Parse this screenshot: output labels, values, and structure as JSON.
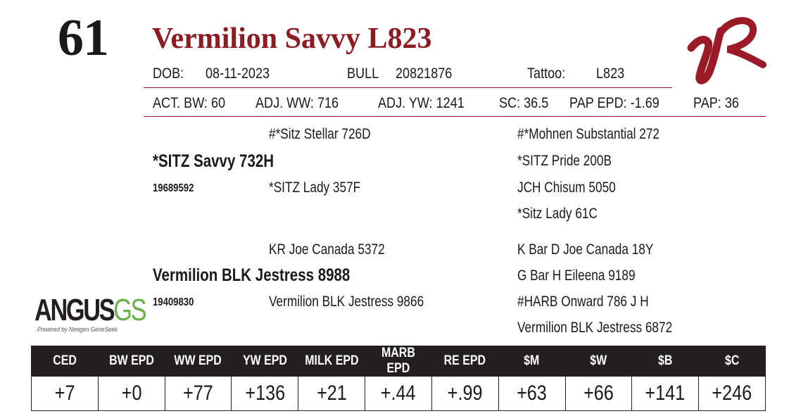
{
  "lot_number": "61",
  "animal_name": "Vermilion Savvy L823",
  "brand_logo": "VR",
  "header": {
    "dob_label": "DOB:",
    "dob": "08-11-2023",
    "sex": "BULL",
    "reg_no": "20821876",
    "tattoo_label": "Tattoo:",
    "tattoo": "L823"
  },
  "performance": {
    "act_bw": "ACT. BW: 60",
    "adj_ww": "ADJ. WW: 716",
    "adj_yw": "ADJ. YW: 1241",
    "sc": "SC: 36.5",
    "pap_epd": "PAP EPD: -1.69",
    "pap": "PAP: 36"
  },
  "pedigree": {
    "sire": "*SITZ Savvy 732H",
    "sire_reg": "19689592",
    "sire_sire": "#*Sitz Stellar 726D",
    "sire_dam": "*SITZ Lady 357F",
    "sire_sire_sire": "#*Mohnen Substantial 272",
    "sire_sire_dam": "*SITZ Pride 200B",
    "sire_dam_sire": "JCH Chisum 5050",
    "sire_dam_dam": "*Sitz Lady 61C",
    "dam": "Vermilion BLK Jestress 8988",
    "dam_reg": "19409830",
    "dam_sire": "KR Joe Canada 5372",
    "dam_dam": "Vermilion BLK Jestress 9866",
    "dam_sire_sire": "K Bar D Joe Canada 18Y",
    "dam_sire_dam": "G Bar H Eileena 9189",
    "dam_dam_sire": "#HARB Onward 786 J H",
    "dam_dam_dam": "Vermilion BLK Jestress 6872"
  },
  "angus_logo": {
    "word": "ANGUS",
    "suffix": "GS",
    "tagline": "Powered by Neogen GeneSeek"
  },
  "epd_table": {
    "headers": [
      "CED",
      "BW EPD",
      "WW EPD",
      "YW EPD",
      "MILK EPD",
      "MARB EPD",
      "RE EPD",
      "$M",
      "$W",
      "$B",
      "$C"
    ],
    "values": [
      "+7",
      "+0",
      "+77",
      "+136",
      "+21",
      "+.44",
      "+.99",
      "+63",
      "+66",
      "+141",
      "+246"
    ]
  },
  "colors": {
    "brand_red": "#8b1c24",
    "header_bg": "#231f20",
    "angus_green": "#6ab04c"
  }
}
